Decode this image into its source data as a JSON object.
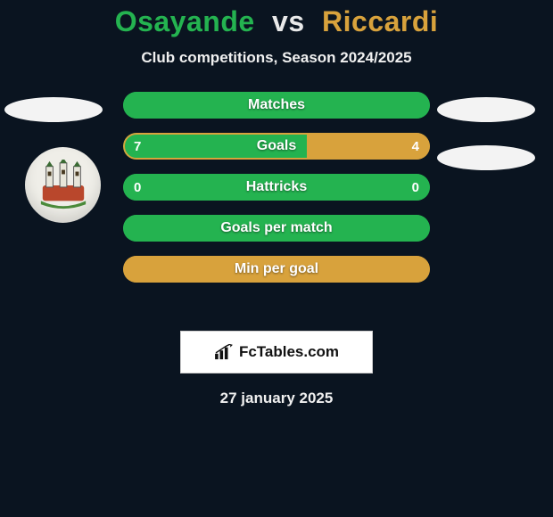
{
  "background_color": "#0a1420",
  "title": {
    "player1": "Osayande",
    "vs": "vs",
    "player2": "Riccardi",
    "player1_color": "#24b350",
    "player2_color": "#d8a23c",
    "vs_color": "#e9e9e9",
    "fontsize": 32
  },
  "subtitle": "Club competitions, Season 2024/2025",
  "colors": {
    "green": "#24b350",
    "yellow": "#d8a23c",
    "text": "#f0f0f0",
    "ellipse": "#f3f3f3",
    "badge_bg": "#efeee8",
    "logo_bg": "#ffffff",
    "logo_border": "#cfcfcf"
  },
  "stats": [
    {
      "label": "Matches",
      "left_value": null,
      "right_value": null,
      "left_pct": 0,
      "right_pct": 0,
      "full_fill": "green",
      "border": "green"
    },
    {
      "label": "Goals",
      "left_value": "7",
      "right_value": "4",
      "left_pct": 60,
      "right_pct": 40,
      "full_fill": null,
      "border": "yellow"
    },
    {
      "label": "Hattricks",
      "left_value": "0",
      "right_value": "0",
      "left_pct": 0,
      "right_pct": 0,
      "full_fill": "green",
      "border": "green"
    },
    {
      "label": "Goals per match",
      "left_value": null,
      "right_value": null,
      "left_pct": 0,
      "right_pct": 0,
      "full_fill": "green",
      "border": "green"
    },
    {
      "label": "Min per goal",
      "left_value": null,
      "right_value": null,
      "left_pct": 0,
      "right_pct": 0,
      "full_fill": "yellow",
      "border": "yellow"
    }
  ],
  "bar_style": {
    "height": 30,
    "gap": 16,
    "radius": 15,
    "label_fontsize": 16,
    "value_fontsize": 15
  },
  "logo_text": "FcTables.com",
  "date": "27 january 2025"
}
